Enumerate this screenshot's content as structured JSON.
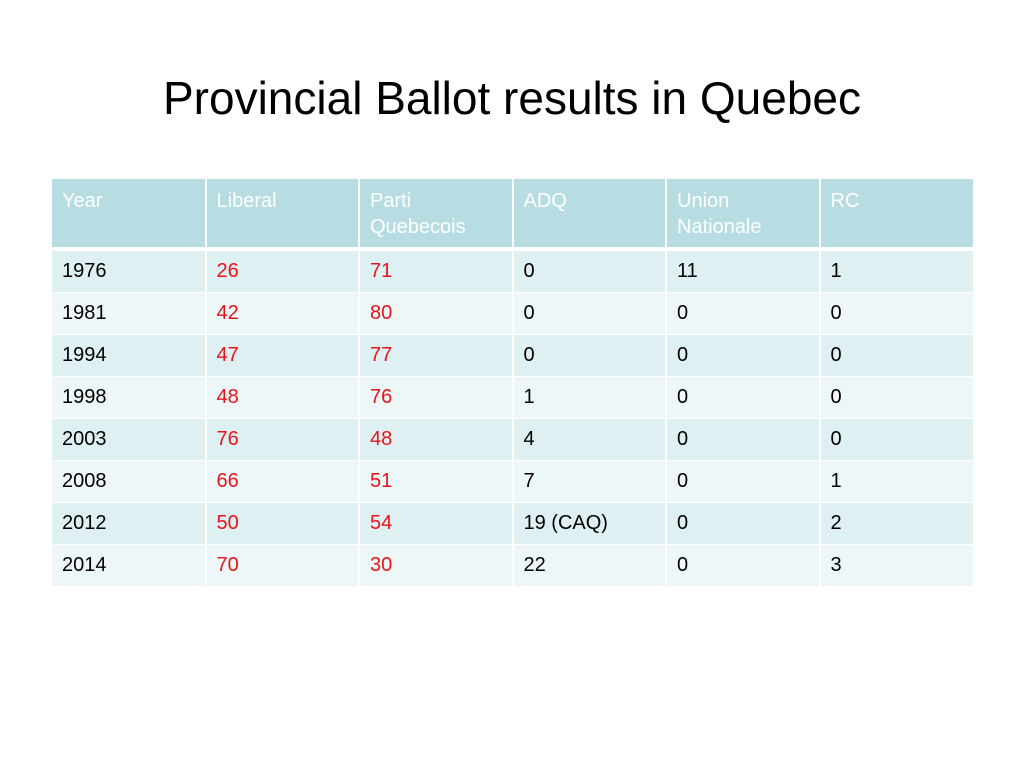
{
  "slide": {
    "title": "Provincial Ballot results in Quebec"
  },
  "colors": {
    "header_background": "#b7dde3",
    "row_odd": "#dff0f3",
    "row_even": "#eef7f8",
    "highlight_text": "#e8141b"
  },
  "table": {
    "headers": [
      "Year",
      "Liberal",
      "Parti Quebecois",
      "ADQ",
      "Union Nationale",
      "RC"
    ],
    "rows": [
      [
        "1976",
        "26",
        "71",
        "0",
        "11",
        "1"
      ],
      [
        "1981",
        "42",
        "80",
        "0",
        "0",
        "0"
      ],
      [
        "1994",
        "47",
        "77",
        "0",
        "0",
        "0"
      ],
      [
        "1998",
        "48",
        "76",
        "1",
        "0",
        "0"
      ],
      [
        "2003",
        "76",
        "48",
        "4",
        "0",
        "0"
      ],
      [
        "2008",
        "66",
        "51",
        "7",
        "0",
        "1"
      ],
      [
        "2012",
        "50",
        "54",
        "19 (CAQ)",
        "0",
        "2"
      ],
      [
        "2014",
        "70",
        "30",
        "22",
        "0",
        "3"
      ]
    ]
  }
}
